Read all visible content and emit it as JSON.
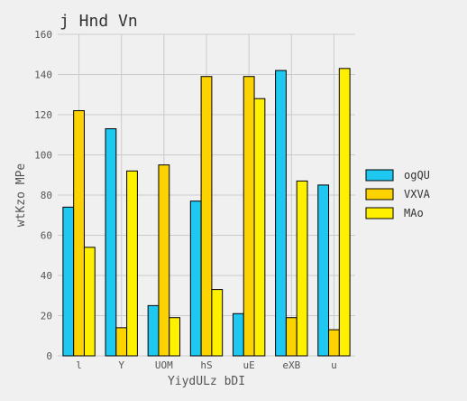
{
  "chart_data": {
    "type": "bar",
    "title": "j Hnd Vn",
    "xlabel": "YiydULz bDI",
    "ylabel": "wtKzo MPe",
    "categories": [
      "l",
      "Y",
      "UOM",
      "hS",
      "uE",
      "eXB",
      "u"
    ],
    "ylim": [
      0,
      160
    ],
    "yticks": [
      0,
      20,
      40,
      60,
      80,
      100,
      120,
      140,
      160
    ],
    "grid": true,
    "legend_position": "right",
    "series": [
      {
        "name": "ogQU",
        "color": "#1ec8f0",
        "values": [
          74,
          113,
          25,
          77,
          21,
          142,
          85
        ]
      },
      {
        "name": "VXVA",
        "color": "#fcd200",
        "values": [
          122,
          14,
          95,
          139,
          139,
          19,
          13
        ]
      },
      {
        "name": "MAo",
        "color": "#fff000",
        "values": [
          54,
          92,
          19,
          33,
          128,
          87,
          143
        ]
      }
    ]
  }
}
